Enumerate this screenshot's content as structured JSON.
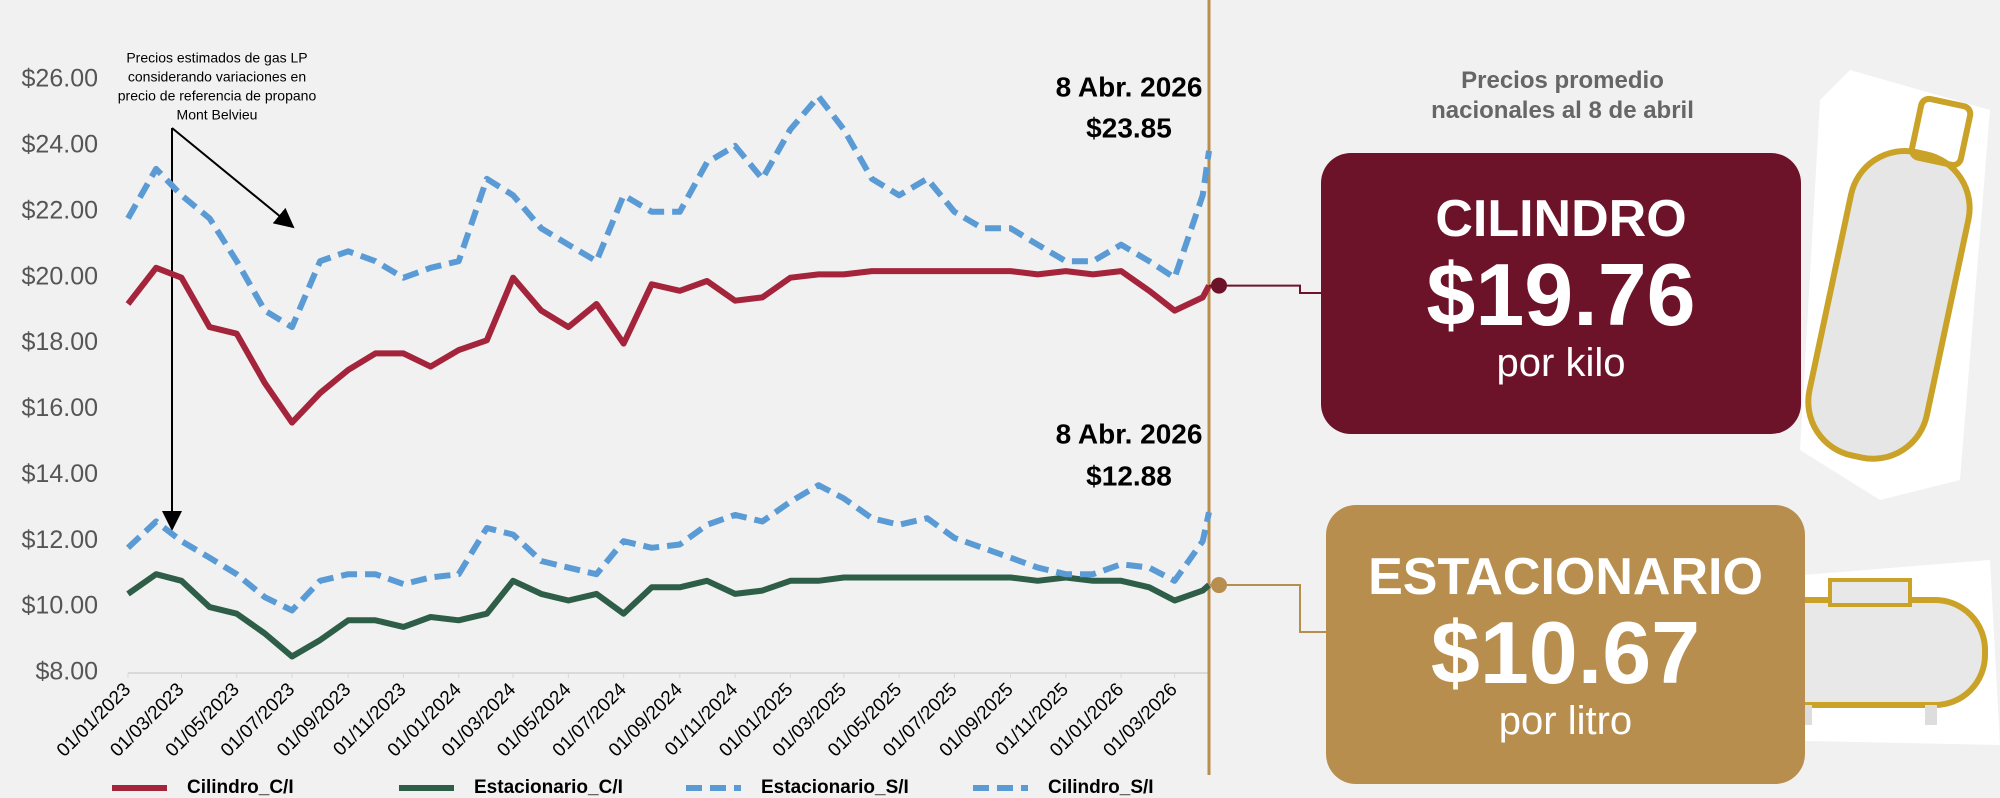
{
  "chart_data": {
    "type": "line",
    "x": [
      "01/01/2023",
      "01/02/2023",
      "01/03/2023",
      "01/04/2023",
      "01/05/2023",
      "01/06/2023",
      "01/07/2023",
      "01/08/2023",
      "01/09/2023",
      "01/10/2023",
      "01/11/2023",
      "01/12/2023",
      "01/01/2024",
      "01/02/2024",
      "01/03/2024",
      "01/04/2024",
      "01/05/2024",
      "01/06/2024",
      "01/07/2024",
      "01/08/2024",
      "01/09/2024",
      "01/10/2024",
      "01/11/2024",
      "01/12/2024",
      "01/01/2025",
      "01/02/2025",
      "01/03/2025",
      "01/04/2025",
      "01/05/2025",
      "01/06/2025",
      "01/07/2025",
      "01/08/2025",
      "01/09/2025",
      "01/10/2025",
      "01/11/2025",
      "01/12/2025",
      "01/01/2026",
      "01/02/2026",
      "01/03/2026",
      "01/04/2026",
      "08/04/2026"
    ],
    "series": [
      {
        "name": "Cilindro_C/I",
        "color": "#a3243b",
        "dashed": false,
        "values": [
          19.2,
          20.3,
          20.0,
          18.5,
          18.3,
          16.8,
          15.6,
          16.5,
          17.2,
          17.7,
          17.7,
          17.3,
          17.8,
          18.1,
          20.0,
          19.0,
          18.5,
          19.2,
          18.0,
          19.8,
          19.6,
          19.9,
          19.3,
          19.4,
          20.0,
          20.1,
          20.1,
          20.2,
          20.2,
          20.2,
          20.2,
          20.2,
          20.2,
          20.1,
          20.2,
          20.1,
          20.2,
          19.6,
          19.0,
          19.4,
          19.76
        ]
      },
      {
        "name": "Estacionario_C/I",
        "color": "#2e5e47",
        "dashed": false,
        "values": [
          10.4,
          11.0,
          10.8,
          10.0,
          9.8,
          9.2,
          8.5,
          9.0,
          9.6,
          9.6,
          9.4,
          9.7,
          9.6,
          9.8,
          10.8,
          10.4,
          10.2,
          10.4,
          9.8,
          10.6,
          10.6,
          10.8,
          10.4,
          10.5,
          10.8,
          10.8,
          10.9,
          10.9,
          10.9,
          10.9,
          10.9,
          10.9,
          10.9,
          10.8,
          10.9,
          10.8,
          10.8,
          10.6,
          10.2,
          10.5,
          10.67
        ]
      },
      {
        "name": "Estacionario_S/I",
        "color": "#5b9bd5",
        "dashed": true,
        "values": [
          11.8,
          12.6,
          12.0,
          11.5,
          11.0,
          10.3,
          9.9,
          10.8,
          11.0,
          11.0,
          10.7,
          10.9,
          11.0,
          12.4,
          12.2,
          11.4,
          11.2,
          11.0,
          12.0,
          11.8,
          11.9,
          12.5,
          12.8,
          12.6,
          13.2,
          13.7,
          13.3,
          12.7,
          12.5,
          12.7,
          12.1,
          11.8,
          11.5,
          11.2,
          11.0,
          11.0,
          11.3,
          11.2,
          10.8,
          12.0,
          12.88
        ]
      },
      {
        "name": "Cilindro_S/I",
        "color": "#5b9bd5",
        "dashed": true,
        "values": [
          21.8,
          23.3,
          22.5,
          21.8,
          20.5,
          19.0,
          18.5,
          20.5,
          20.8,
          20.5,
          20.0,
          20.3,
          20.5,
          23.0,
          22.5,
          21.5,
          21.0,
          20.5,
          22.5,
          22.0,
          22.0,
          23.5,
          24.0,
          23.0,
          24.5,
          25.5,
          24.5,
          23.0,
          22.5,
          23.0,
          22.0,
          21.5,
          21.5,
          21.0,
          20.5,
          20.5,
          21.0,
          20.5,
          20.0,
          22.5,
          23.85
        ]
      }
    ],
    "xlim": [
      "01/01/2023",
      "08/04/2026"
    ],
    "xticks": [
      "01/01/2023",
      "01/03/2023",
      "01/05/2023",
      "01/07/2023",
      "01/09/2023",
      "01/11/2023",
      "01/01/2024",
      "01/03/2024",
      "01/05/2024",
      "01/07/2024",
      "01/09/2024",
      "01/11/2024",
      "01/01/2025",
      "01/03/2025",
      "01/05/2025",
      "01/07/2025",
      "01/09/2025",
      "01/11/2025",
      "01/01/2026",
      "01/03/2026"
    ],
    "ylim": [
      8,
      26
    ],
    "yticks": [
      {
        "value": 8,
        "label": "$8.00"
      },
      {
        "value": 10,
        "label": "$10.00"
      },
      {
        "value": 12,
        "label": "$12.00"
      },
      {
        "value": 14,
        "label": "$14.00"
      },
      {
        "value": 16,
        "label": "$16.00"
      },
      {
        "value": 18,
        "label": "$18.00"
      },
      {
        "value": 20,
        "label": "$20.00"
      },
      {
        "value": 22,
        "label": "$22.00"
      },
      {
        "value": 24,
        "label": "$24.00"
      },
      {
        "value": 26,
        "label": "$26.00"
      }
    ],
    "grid": false,
    "note": [
      "Precios estimados de gas LP",
      "considerando variaciones en",
      "precio de referencia de propano",
      "Mont Belvieu"
    ],
    "annotations": [
      {
        "date": "8 Abr. 2026",
        "value_label": "$23.85",
        "value": 23.85
      },
      {
        "date": "8 Abr. 2026",
        "value_label": "$12.88",
        "value": 12.88
      }
    ]
  },
  "panel": {
    "heading": [
      "Precios promedio",
      "nacionales al 8 de abril"
    ],
    "cards": [
      {
        "title": "CILINDRO",
        "price": "$19.76",
        "unit": "por kilo"
      },
      {
        "title": "ESTACIONARIO",
        "price": "$10.67",
        "unit": "por litro"
      }
    ]
  }
}
